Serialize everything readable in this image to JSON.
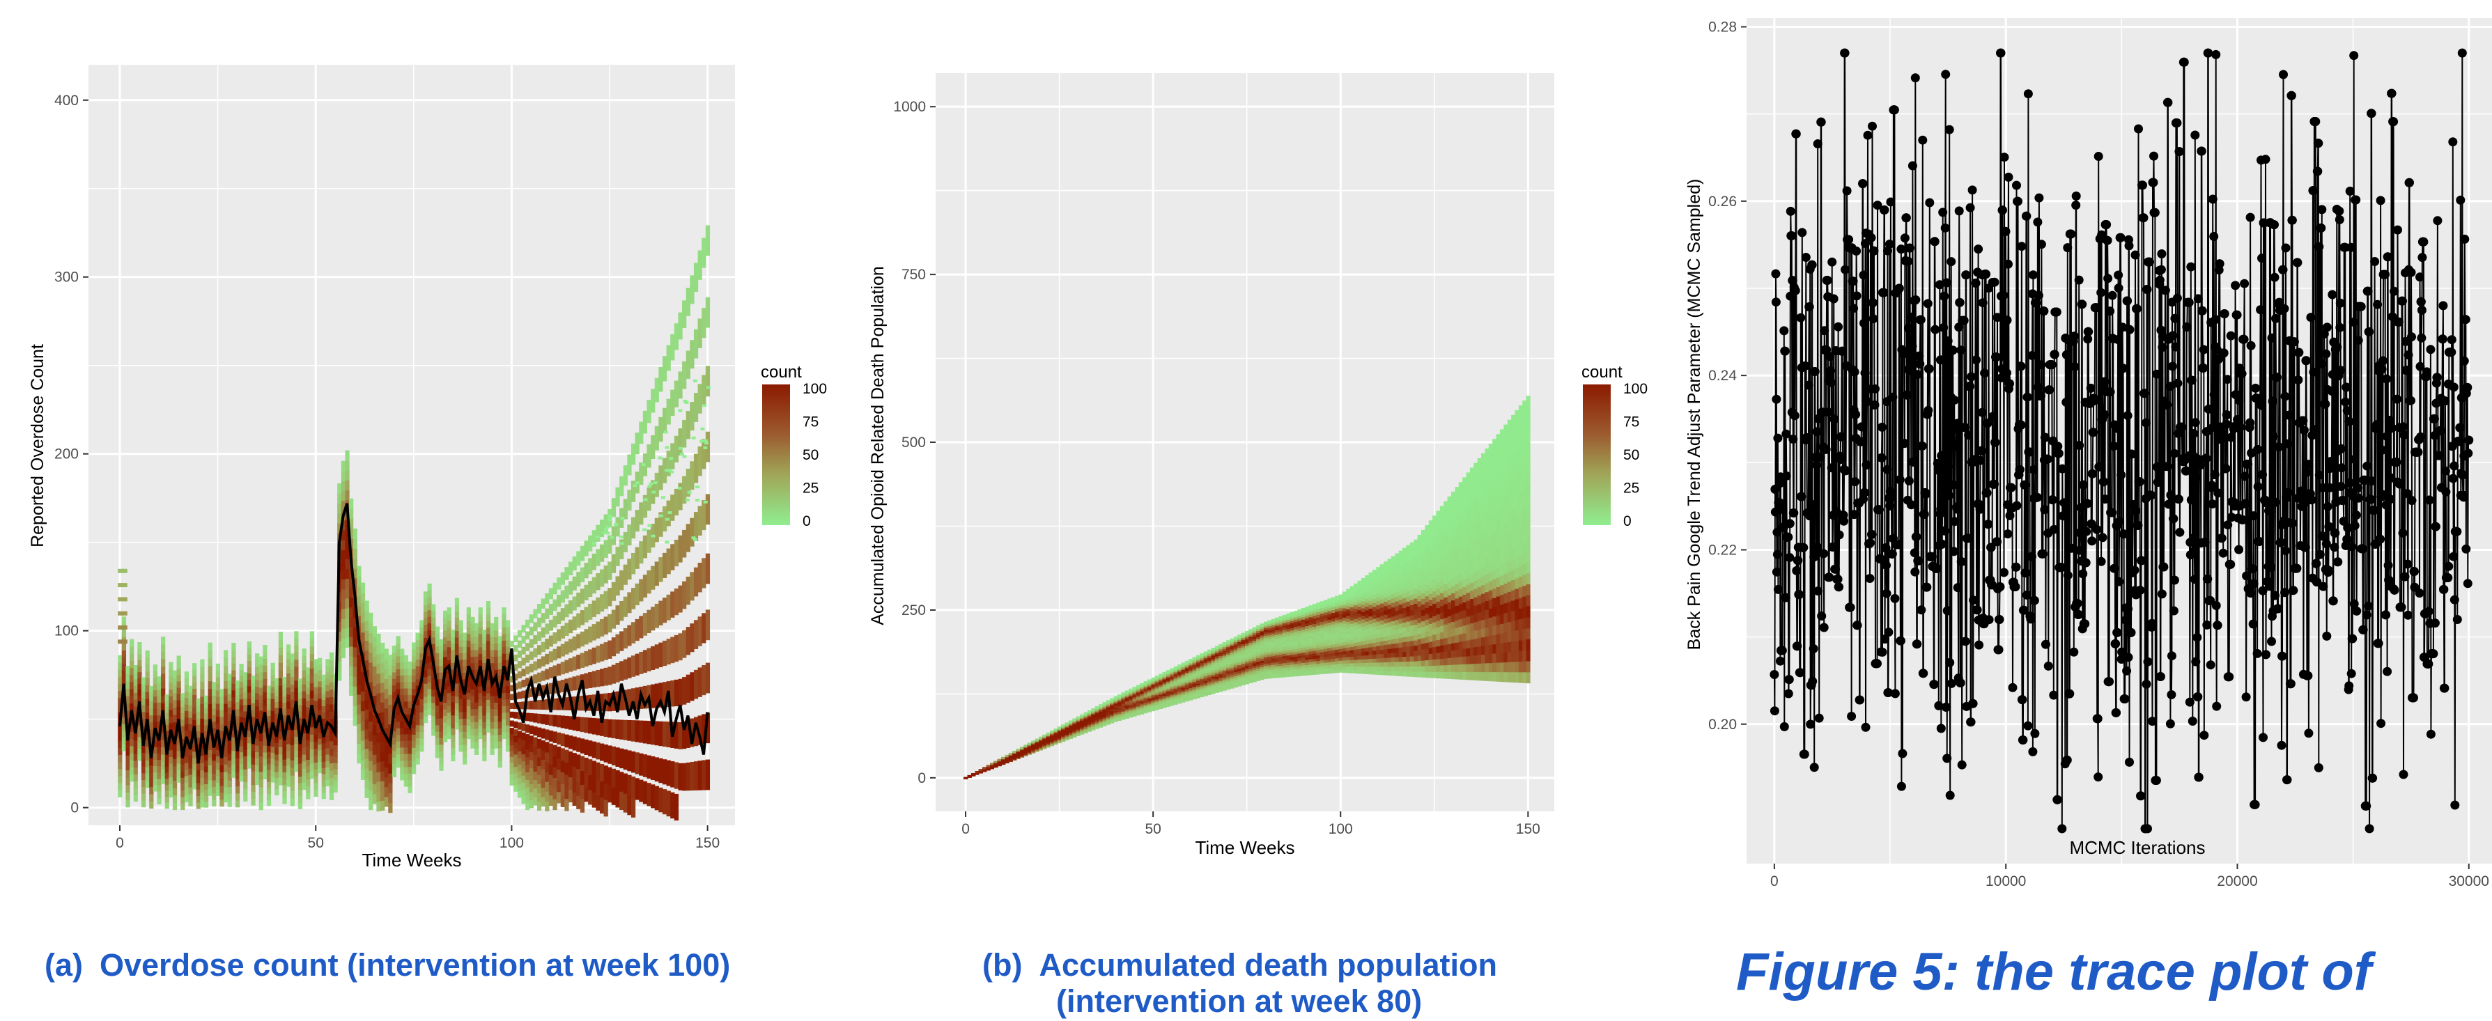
{
  "chart_data": [
    {
      "type": "heatmap",
      "panel": "a",
      "xlabel": "Time Weeks",
      "ylabel": "Reported Overdose Count",
      "xlim": [
        -8,
        157
      ],
      "ylim": [
        -10,
        420
      ],
      "xticks": [
        0,
        50,
        100,
        150
      ],
      "yticks": [
        0,
        100,
        200,
        300,
        400
      ],
      "legend": {
        "title": "count",
        "labels": [
          "100",
          "75",
          "50",
          "25",
          "0"
        ],
        "placement": "right"
      },
      "grid": true,
      "colors": {
        "low": "#90ee90",
        "high": "#8b1a00",
        "line": "#000000",
        "panel": "#ebebeb"
      },
      "observed_series": {
        "x": [
          0,
          1,
          2,
          3,
          4,
          5,
          6,
          7,
          8,
          9,
          10,
          11,
          12,
          13,
          14,
          15,
          16,
          17,
          18,
          19,
          20,
          21,
          22,
          23,
          24,
          25,
          26,
          27,
          28,
          29,
          30,
          31,
          32,
          33,
          34,
          35,
          36,
          37,
          38,
          39,
          40,
          41,
          42,
          43,
          44,
          45,
          46,
          47,
          48,
          49,
          50,
          51,
          52,
          53,
          54,
          55,
          56,
          57,
          58,
          59,
          60,
          61,
          62,
          63,
          64,
          65,
          66,
          67,
          68,
          69,
          70,
          71,
          72,
          73,
          74,
          75,
          76,
          77,
          78,
          79,
          80,
          81,
          82,
          83,
          84,
          85,
          86,
          87,
          88,
          89,
          90,
          91,
          92,
          93,
          94,
          95,
          96,
          97,
          98,
          99,
          100,
          101,
          102,
          103,
          104,
          105,
          106,
          107,
          108,
          109,
          110,
          111,
          112,
          113,
          114,
          115,
          116,
          117,
          118,
          119,
          120,
          121,
          122,
          123,
          124,
          125,
          126,
          127,
          128,
          129,
          130,
          131,
          132,
          133,
          134,
          135,
          136,
          137,
          138,
          139,
          140,
          141,
          142,
          143,
          144,
          145,
          146,
          147,
          148,
          149,
          150
        ],
        "values": [
          46,
          70,
          38,
          55,
          42,
          60,
          35,
          50,
          28,
          45,
          38,
          55,
          30,
          44,
          36,
          50,
          28,
          40,
          33,
          46,
          25,
          42,
          30,
          50,
          34,
          44,
          28,
          46,
          38,
          55,
          32,
          48,
          40,
          58,
          36,
          50,
          42,
          54,
          35,
          48,
          40,
          56,
          38,
          52,
          44,
          60,
          36,
          50,
          42,
          58,
          45,
          52,
          40,
          48,
          46,
          42,
          150,
          165,
          172,
          140,
          120,
          95,
          84,
          72,
          64,
          55,
          50,
          44,
          40,
          36,
          56,
          62,
          54,
          50,
          46,
          58,
          64,
          72,
          90,
          95,
          82,
          68,
          60,
          78,
          80,
          66,
          86,
          72,
          64,
          80,
          74,
          70,
          80,
          66,
          84,
          70,
          74,
          62,
          80,
          72,
          90,
          60,
          55,
          48,
          66,
          72,
          60,
          70,
          62,
          68,
          54,
          74,
          64,
          58,
          70,
          62,
          50,
          64,
          72,
          56,
          60,
          52,
          66,
          48,
          60,
          58,
          64,
          54,
          70,
          62,
          52,
          60,
          50,
          64,
          58,
          62,
          46,
          56,
          60,
          54,
          66,
          40,
          50,
          58,
          44,
          52,
          36,
          48,
          40,
          30,
          54
        ]
      }
    },
    {
      "type": "heatmap",
      "panel": "b",
      "xlabel": "Time Weeks",
      "ylabel": "Accumulated Opioid Related Death Population",
      "xlim": [
        -8,
        157
      ],
      "ylim": [
        -50,
        1050
      ],
      "xticks": [
        0,
        50,
        100,
        150
      ],
      "yticks": [
        0,
        250,
        500,
        750,
        1000
      ],
      "legend": {
        "title": "count",
        "labels": [
          "100",
          "75",
          "50",
          "25",
          "0"
        ],
        "placement": "right"
      },
      "grid": true,
      "colors": {
        "low": "#90ee90",
        "high": "#8b1a00",
        "panel": "#ebebeb"
      },
      "band_upper": {
        "x": [
          0,
          40,
          80,
          100,
          120,
          150
        ],
        "values": [
          0,
          120,
          230,
          270,
          350,
          560
        ]
      },
      "band_lower": {
        "x": [
          0,
          40,
          80,
          100,
          120,
          150
        ],
        "values": [
          0,
          85,
          150,
          160,
          155,
          150
        ]
      },
      "high_density_lines": [
        {
          "x": [
            0,
            40,
            80,
            100,
            120,
            150
          ],
          "values": [
            0,
            110,
            220,
            245,
            250,
            255
          ]
        },
        {
          "x": [
            0,
            40,
            80,
            100,
            120,
            150
          ],
          "values": [
            0,
            100,
            175,
            185,
            190,
            190
          ]
        }
      ]
    },
    {
      "type": "line",
      "panel": "c",
      "xlabel": "MCMC Iterations",
      "ylabel": "Back Pain Google Trend Adjust Parameter (MCMC Sampled)",
      "xlim": [
        -1200,
        31000
      ],
      "ylim": [
        0.184,
        0.281
      ],
      "xticks": [
        0,
        10000,
        20000,
        30000
      ],
      "xtick_labels": [
        "0",
        "10000",
        "20000",
        "30000"
      ],
      "yticks": [
        0.2,
        0.22,
        0.24,
        0.26,
        0.28
      ],
      "ytick_labels": [
        "0.20",
        "0.22",
        "0.24",
        "0.26",
        "0.28"
      ],
      "grid": true,
      "colors": {
        "line": "#000000",
        "panel": "#ebebeb"
      },
      "series": [
        {
          "range_x": [
            0,
            30000
          ],
          "range_y": [
            0.188,
            0.277
          ],
          "samples": 2000
        }
      ]
    }
  ],
  "captions": {
    "a_label": "(a)",
    "a_text": "Overdose count (intervention at week 100)",
    "b_label": "(b)",
    "b_line1": "Accumulated death population",
    "b_line2": "(intervention at week 80)",
    "c_text": "Figure 5: the trace plot of"
  }
}
